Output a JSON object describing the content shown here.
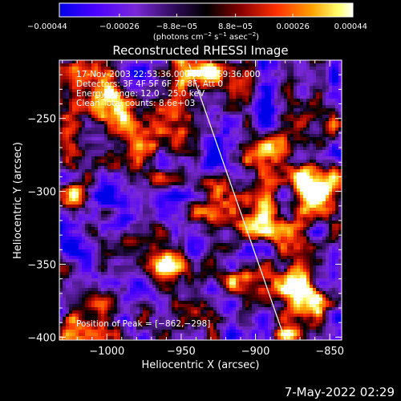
{
  "chart_data": {
    "type": "heatmap",
    "title": "Reconstructed RHESSI Image",
    "xlabel": "Heliocentric X (arcsec)",
    "ylabel": "Heliocentric Y (arcsec)",
    "xlim": [
      -1032,
      -842
    ],
    "ylim": [
      -402,
      -210
    ],
    "x_ticks": [
      -1000,
      -950,
      -900,
      -850
    ],
    "x_tick_labels": [
      "−1000",
      "−950",
      "−900",
      "−850"
    ],
    "y_ticks": [
      -400,
      -350,
      -300,
      -250
    ],
    "y_tick_labels": [
      "−400",
      "−350",
      "−300",
      "−250"
    ],
    "colorbar": {
      "colormap": "heat-with-blue-negatives",
      "range": [
        -0.00044,
        0.00044
      ],
      "ticks": [
        -0.00044,
        -0.00026,
        -8.8e-05,
        8.8e-05,
        0.00026,
        0.00044
      ],
      "tick_labels": [
        "−0.00044",
        "−0.00026",
        "−8.8e−05",
        "8.8e−05",
        "0.00026",
        "0.00044"
      ],
      "unit_text": "(photons cm",
      "unit_sup1": "−2",
      "unit_mid": " s",
      "unit_sup2": "−1",
      "unit_mid2": " asec",
      "unit_sup3": "−2",
      "unit_end": ")"
    },
    "annotations": [
      "17-Nov-2003 22:53:36.000 to 22:59:36.000",
      "Detectors: 3F 4F 5F 6F 7F 8F, Att 0",
      "Energy Range: 12.0 - 25.0 keV",
      "Clean    Total counts: 8.6e+03"
    ],
    "peak_label": "Position of Peak = [−862,−298]",
    "peak": [
      -862,
      -298
    ],
    "limb_line": [
      [
        -945,
        -212
      ],
      [
        -880,
        -402
      ]
    ],
    "colors": {
      "bar_low": "#0000ff",
      "bar_zero": "#000000",
      "bar_high": "#ffffff",
      "background": "#000000",
      "text": "#ffffff"
    }
  },
  "footer": {
    "date": "7-May-2022 02:29"
  }
}
